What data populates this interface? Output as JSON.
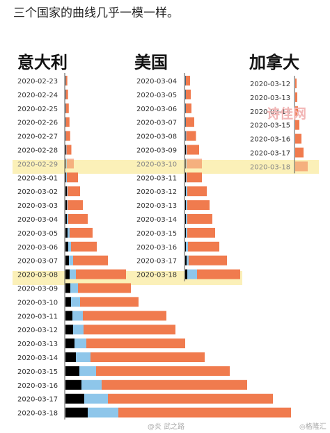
{
  "page_title": "三个国家的曲线几乎一模一样。",
  "watermarks": {
    "center": "@炎 武之路",
    "corner": "◎格隆汇",
    "stamp": "诗佳网"
  },
  "colors": {
    "black": "#000000",
    "blue": "#8ec6ea",
    "orange": "#f07b4e",
    "highlight": "#fbf0b8"
  },
  "chart_data": [
    {
      "type": "bar",
      "title": "意大利",
      "stacked": true,
      "orientation": "horizontal",
      "highlight_index": 6,
      "categories": [
        "2020-02-23",
        "2020-02-24",
        "2020-02-25",
        "2020-02-26",
        "2020-02-27",
        "2020-02-28",
        "2020-02-29",
        "2020-03-01",
        "2020-03-02",
        "2020-03-03",
        "2020-03-04",
        "2020-03-05",
        "2020-03-06",
        "2020-03-07",
        "2020-03-08",
        "2020-03-09",
        "2020-03-10",
        "2020-03-11",
        "2020-03-12",
        "2020-03-13",
        "2020-03-14",
        "2020-03-15",
        "2020-03-16",
        "2020-03-17",
        "2020-03-18"
      ],
      "series": [
        {
          "color": "black",
          "values": [
            0.5,
            0.5,
            0.5,
            0.5,
            0.5,
            1,
            1,
            1,
            2,
            2,
            2,
            3,
            4,
            5,
            6,
            7,
            8,
            10,
            11,
            13,
            15,
            20,
            23,
            27,
            32
          ]
        },
        {
          "color": "blue",
          "values": [
            0.2,
            0.2,
            0.3,
            0.3,
            0.3,
            0.5,
            1,
            1,
            1,
            1,
            2,
            3,
            4,
            6,
            9,
            11,
            13,
            15,
            15,
            17,
            21,
            24,
            29,
            34,
            44
          ]
        },
        {
          "color": "orange",
          "values": [
            2,
            3,
            4,
            5,
            6,
            7,
            10,
            16,
            18,
            22,
            28,
            33,
            37,
            50,
            72,
            76,
            84,
            120,
            132,
            142,
            164,
            192,
            209,
            237,
            248
          ]
        }
      ]
    },
    {
      "type": "bar",
      "title": "美国",
      "stacked": true,
      "orientation": "horizontal",
      "highlight_index": 6,
      "categories": [
        "2020-03-04",
        "2020-03-05",
        "2020-03-06",
        "2020-03-07",
        "2020-03-08",
        "2020-03-09",
        "2020-03-10",
        "2020-03-11",
        "2020-03-12",
        "2020-03-13",
        "2020-03-14",
        "2020-03-15",
        "2020-03-16",
        "2020-03-17",
        "2020-03-18"
      ],
      "series": [
        {
          "color": "black",
          "values": [
            0.5,
            0.5,
            0.5,
            0.5,
            0.5,
            1,
            1,
            1,
            1,
            1,
            1,
            1,
            1,
            2,
            3
          ]
        },
        {
          "color": "blue",
          "values": [
            0.5,
            0.5,
            0.5,
            0.5,
            1,
            1,
            1,
            1,
            2,
            2,
            2,
            2,
            3,
            3,
            14
          ]
        },
        {
          "color": "orange",
          "values": [
            6,
            7,
            8,
            12,
            14,
            18,
            22,
            22,
            28,
            32,
            36,
            40,
            45,
            55,
            62
          ]
        }
      ]
    },
    {
      "type": "bar",
      "title": "加拿大",
      "stacked": true,
      "orientation": "horizontal",
      "highlight_index": 6,
      "categories": [
        "2020-03-12",
        "2020-03-13",
        "2020-03-14",
        "2020-03-15",
        "2020-03-16",
        "2020-03-17",
        "2020-03-18"
      ],
      "series": [
        {
          "color": "black",
          "values": [
            0,
            0,
            0,
            0,
            0,
            0,
            0
          ]
        },
        {
          "color": "blue",
          "values": [
            0,
            0,
            0,
            0,
            0,
            0,
            0
          ]
        },
        {
          "color": "orange",
          "values": [
            2,
            3,
            4,
            6,
            9,
            12,
            18
          ]
        }
      ]
    }
  ]
}
